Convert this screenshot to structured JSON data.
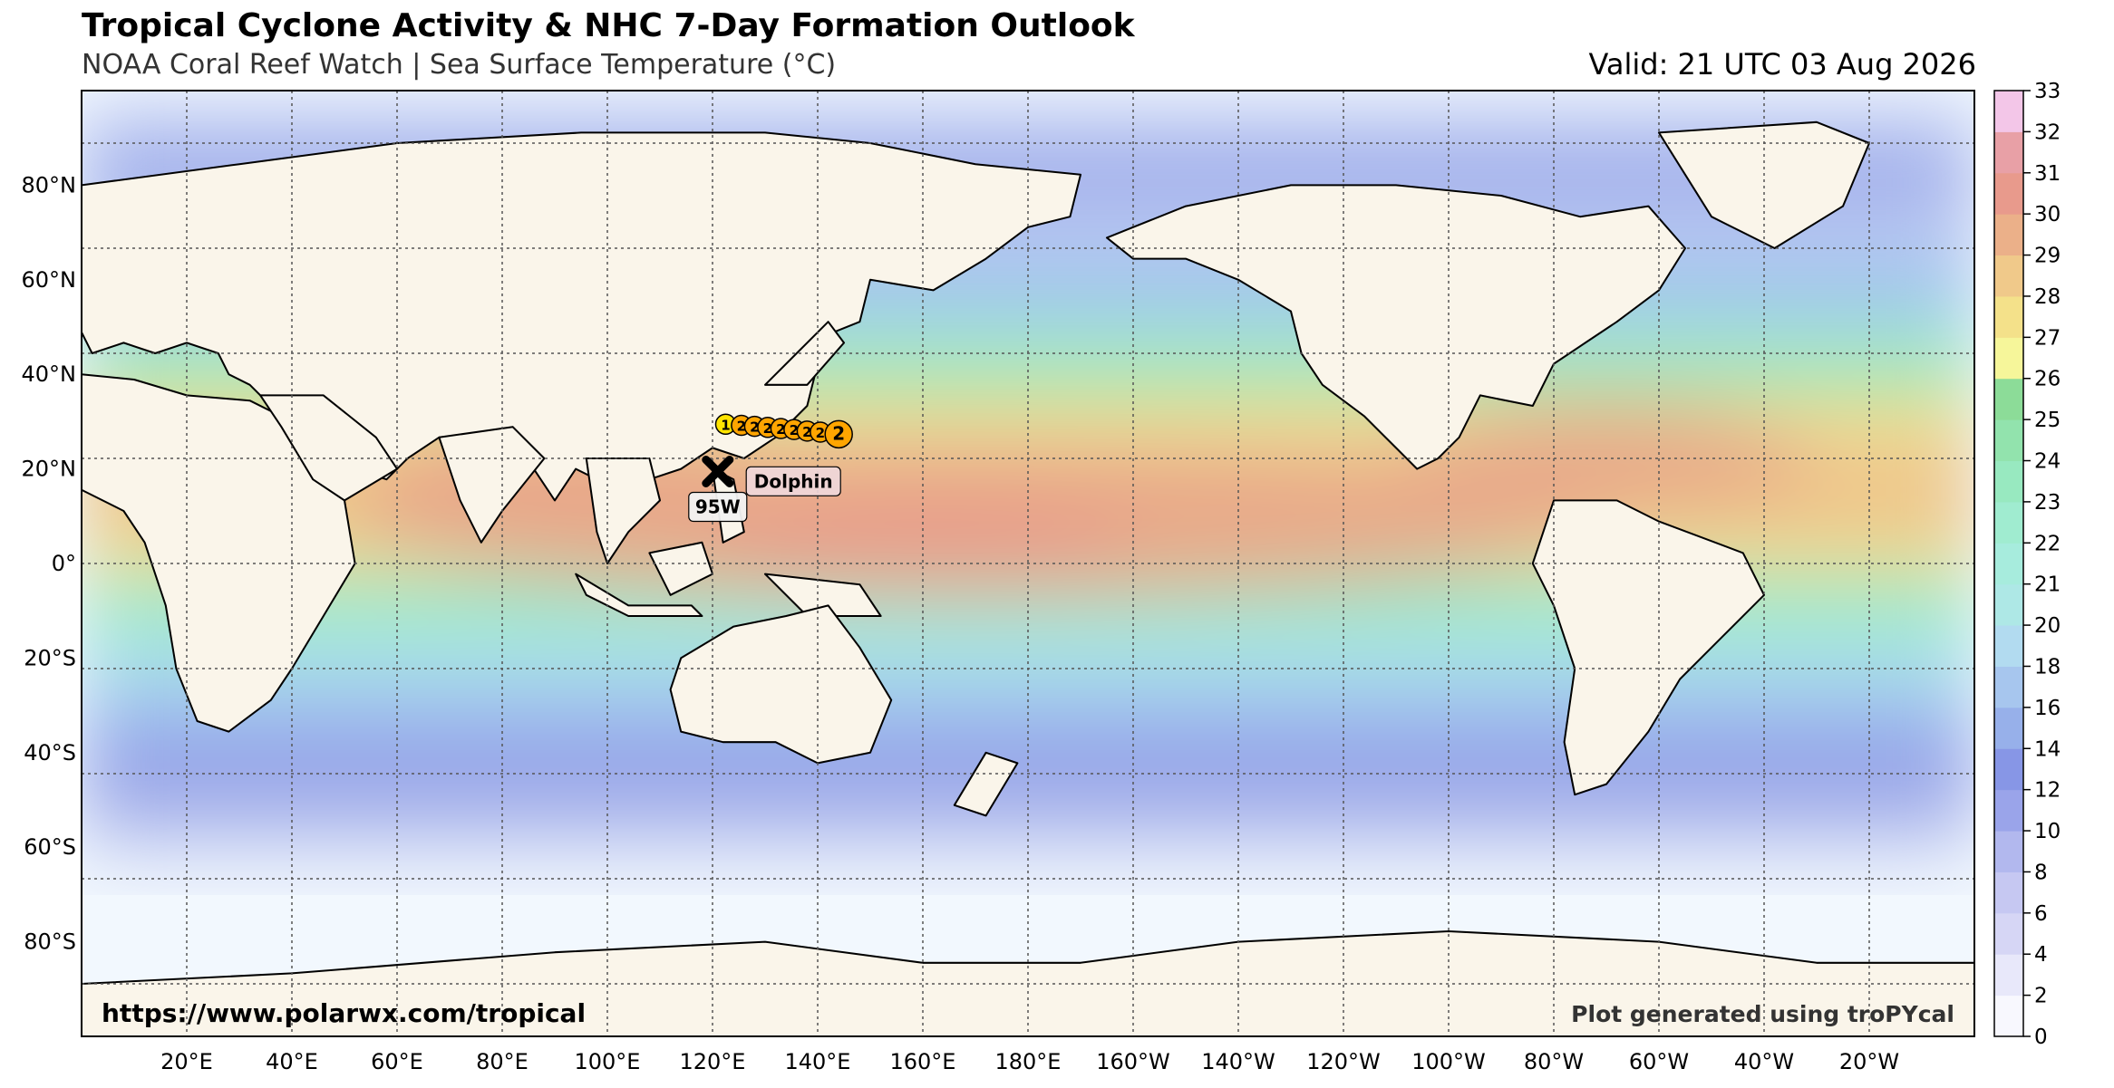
{
  "header": {
    "title": "Tropical Cyclone Activity & NHC 7-Day Formation Outlook",
    "subtitle": "NOAA Coral Reef Watch | Sea Surface Temperature (°C)",
    "valid": "Valid: 21 UTC 03 Aug 2026"
  },
  "map": {
    "projection": "PlateCarree",
    "central_longitude": 180,
    "lon_range": [
      0,
      360
    ],
    "lat_range": [
      -90,
      90
    ],
    "url_text": "https://www.polarwx.com/tropical",
    "credit_text": "Plot generated using troPYcal",
    "lon_ticks": [
      "20°E",
      "40°E",
      "60°E",
      "80°E",
      "100°E",
      "120°E",
      "140°E",
      "160°E",
      "180°E",
      "160°W",
      "140°W",
      "120°W",
      "100°W",
      "80°W",
      "60°W",
      "40°W",
      "20°W"
    ],
    "lat_ticks": [
      "80°N",
      "60°N",
      "40°N",
      "20°N",
      "0°",
      "20°S",
      "40°S",
      "60°S",
      "80°S"
    ],
    "gridlines": true
  },
  "colorbar": {
    "label": "Sea Surface Temperature (°C)",
    "ticks": [
      "0",
      "2",
      "4",
      "6",
      "8",
      "10",
      "12",
      "14",
      "16",
      "18",
      "20",
      "21",
      "22",
      "23",
      "24",
      "25",
      "26",
      "27",
      "28",
      "29",
      "30",
      "31",
      "32",
      "33"
    ],
    "colors": [
      "#f8f8fe",
      "#e8e8fa",
      "#d6d6f5",
      "#c6c8f2",
      "#b2b8ee",
      "#9aa4ea",
      "#8796e6",
      "#97b0ea",
      "#a7c6ee",
      "#b2dbf0",
      "#aee8e6",
      "#a7ecdd",
      "#a0ecd0",
      "#98e9c0",
      "#92e3ad",
      "#8cdc98",
      "#f6f69a",
      "#f4e18a",
      "#f0c98a",
      "#ebb089",
      "#e89a8c",
      "#e8a0a6",
      "#f3c6e8"
    ]
  },
  "storms": [
    {
      "name": "Dolphin",
      "track_label_first": "1",
      "track_label_last": "2",
      "track": [
        {
          "lat": 26.5,
          "lon": 122.5,
          "cat": "1"
        },
        {
          "lat": 26.3,
          "lon": 125.5,
          "cat": "2"
        },
        {
          "lat": 26.1,
          "lon": 128.0,
          "cat": "2"
        },
        {
          "lat": 25.9,
          "lon": 130.5,
          "cat": "2"
        },
        {
          "lat": 25.7,
          "lon": 133.0,
          "cat": "2"
        },
        {
          "lat": 25.5,
          "lon": 135.5,
          "cat": "2"
        },
        {
          "lat": 25.2,
          "lon": 138.0,
          "cat": "2"
        },
        {
          "lat": 25.0,
          "lon": 140.5,
          "cat": "2"
        },
        {
          "lat": 24.6,
          "lon": 144.0,
          "cat": "2"
        }
      ],
      "color": "#ffa500"
    },
    {
      "name": "95W",
      "lat": 17.5,
      "lon": 121.0,
      "marker": "X",
      "color": "#000000"
    }
  ]
}
